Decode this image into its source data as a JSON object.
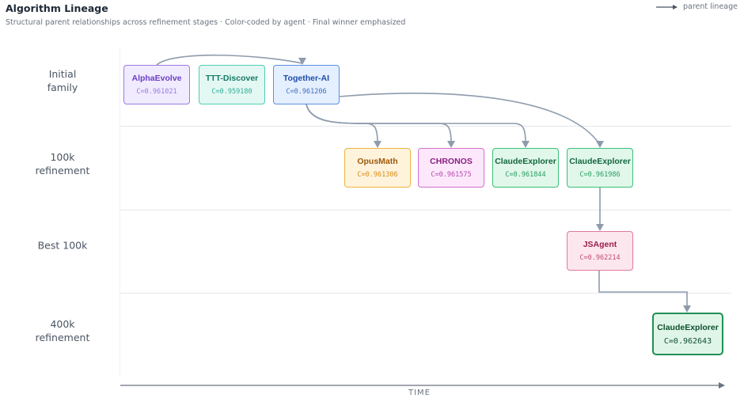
{
  "header": {
    "title": "Algorithm Lineage",
    "subtitle": "Structural parent relationships across refinement stages · Color-coded by agent · Final winner emphasized",
    "legend_label": "parent lineage"
  },
  "axis": {
    "label": "TIME"
  },
  "stages": [
    {
      "label": "Initial\nfamily"
    },
    {
      "label": "100k\nrefinement"
    },
    {
      "label": "Best 100k"
    },
    {
      "label": "400k\nrefinement"
    }
  ],
  "colors": {
    "edge": "#8e9bad",
    "lane": "#e5e7eb"
  },
  "nodes": [
    {
      "id": "alphaevolve",
      "name": "AlphaEvolve",
      "score": "C=0.961021",
      "stage": 0,
      "fill": "#f0ebff",
      "stroke": "#9b7be0",
      "text": "#6c3fc4",
      "score_color": "#9b7be0"
    },
    {
      "id": "ttt-discover",
      "name": "TTT-Discover",
      "score": "C=0.959180",
      "stage": 0,
      "fill": "#e3f8f3",
      "stroke": "#4fcfb3",
      "text": "#157a66",
      "score_color": "#2eae94"
    },
    {
      "id": "together-ai",
      "name": "Together-AI",
      "score": "C=0.961206",
      "stage": 0,
      "fill": "#e4efff",
      "stroke": "#5b8fe0",
      "text": "#1f4fa8",
      "score_color": "#3f6fbf"
    },
    {
      "id": "opusmath",
      "name": "OpusMath",
      "score": "C=0.961306",
      "stage": 1,
      "fill": "#fff3dc",
      "stroke": "#f0b33c",
      "text": "#9a5a0b",
      "score_color": "#d48d16"
    },
    {
      "id": "chronos",
      "name": "CHRONOS",
      "score": "C=0.961575",
      "stage": 1,
      "fill": "#fde8fb",
      "stroke": "#d46fcd",
      "text": "#8b1e83",
      "score_color": "#b44aac"
    },
    {
      "id": "claude-a",
      "name": "ClaudeExplorer",
      "score": "C=0.961844",
      "stage": 1,
      "fill": "#e0f7ea",
      "stroke": "#3cbf7a",
      "text": "#13663e",
      "score_color": "#2a9e62"
    },
    {
      "id": "claude-b",
      "name": "ClaudeExplorer",
      "score": "C=0.961986",
      "stage": 1,
      "fill": "#e0f7ea",
      "stroke": "#3cbf7a",
      "text": "#13663e",
      "score_color": "#2a9e62"
    },
    {
      "id": "jsagent",
      "name": "JSAgent",
      "score": "C=0.962214",
      "stage": 2,
      "fill": "#fde7ef",
      "stroke": "#e3779f",
      "text": "#9b1e4b",
      "score_color": "#c04a76"
    },
    {
      "id": "claude-win",
      "name": "ClaudeExplorer",
      "score": "C=0.962643",
      "stage": 3,
      "fill": "#dff5e7",
      "stroke": "#1f8f55",
      "text": "#0f4f2e",
      "score_color": "#0f4f2e",
      "winner": true
    }
  ],
  "edges": [
    {
      "from": "alphaevolve",
      "to": "together-ai"
    },
    {
      "from": "together-ai",
      "to": "opusmath"
    },
    {
      "from": "together-ai",
      "to": "chronos"
    },
    {
      "from": "together-ai",
      "to": "claude-a"
    },
    {
      "from": "together-ai",
      "to": "claude-b"
    },
    {
      "from": "claude-b",
      "to": "jsagent"
    },
    {
      "from": "jsagent",
      "to": "claude-win"
    }
  ]
}
